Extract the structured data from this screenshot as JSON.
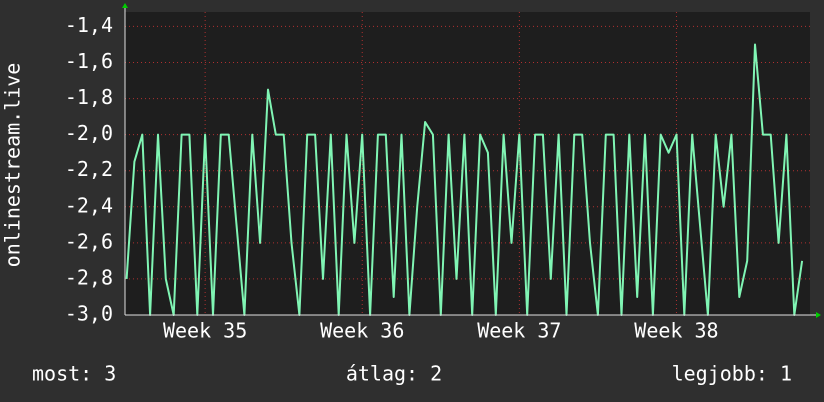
{
  "chart_data": {
    "type": "line",
    "y_label": "onlinestream.live",
    "footer": [
      "most: 3",
      "átlag: 2",
      "legjobb: 1"
    ],
    "x": [
      35.0,
      35.05,
      35.1,
      35.15,
      35.2,
      35.25,
      35.3,
      35.35,
      35.4,
      35.45,
      35.5,
      35.55,
      35.6,
      35.65,
      35.7,
      35.75,
      35.8,
      35.85,
      35.9,
      35.95,
      36.0,
      36.05,
      36.1,
      36.15,
      36.2,
      36.25,
      36.3,
      36.35,
      36.4,
      36.45,
      36.5,
      36.55,
      36.6,
      36.65,
      36.7,
      36.75,
      36.8,
      36.85,
      36.9,
      36.95,
      37.0,
      37.05,
      37.1,
      37.15,
      37.2,
      37.25,
      37.3,
      37.35,
      37.4,
      37.45,
      37.5,
      37.55,
      37.6,
      37.65,
      37.7,
      37.75,
      37.8,
      37.85,
      37.9,
      37.95,
      38.0,
      38.05,
      38.1,
      38.15,
      38.2,
      38.25,
      38.3,
      38.35,
      38.4,
      38.45,
      38.5,
      38.55,
      38.6,
      38.65,
      38.7,
      38.75,
      38.8,
      38.85,
      38.9,
      38.95,
      39.0,
      39.05,
      39.1,
      39.15,
      39.2,
      39.25,
      39.3
    ],
    "series": [
      {
        "color": "#80f5b4",
        "values": [
          -2.8,
          -2.15,
          -2.0,
          -3.0,
          -2.0,
          -2.8,
          -3.0,
          -2.0,
          -2.0,
          -3.0,
          -2.0,
          -3.0,
          -2.0,
          -2.0,
          -2.5,
          -3.0,
          -2.0,
          -2.6,
          -1.75,
          -2.0,
          -2.0,
          -2.6,
          -3.0,
          -2.0,
          -2.0,
          -2.8,
          -2.0,
          -3.0,
          -2.0,
          -2.6,
          -2.0,
          -3.0,
          -2.0,
          -2.0,
          -2.9,
          -2.0,
          -3.0,
          -2.4,
          -1.93,
          -2.0,
          -3.0,
          -2.0,
          -2.8,
          -2.0,
          -3.0,
          -2.0,
          -2.1,
          -3.0,
          -2.0,
          -2.6,
          -2.0,
          -3.0,
          -2.0,
          -2.0,
          -2.8,
          -2.0,
          -3.0,
          -2.0,
          -2.0,
          -2.6,
          -3.0,
          -2.0,
          -2.0,
          -3.0,
          -2.0,
          -2.9,
          -2.0,
          -3.0,
          -2.0,
          -2.1,
          -2.0,
          -3.0,
          -2.0,
          -2.5,
          -3.0,
          -2.0,
          -2.4,
          -2.0,
          -2.9,
          -2.7,
          -1.5,
          -2.0,
          -2.0,
          -2.6,
          -2.0,
          -3.0,
          -2.7
        ]
      }
    ],
    "xlim": [
      34.99,
      39.35
    ],
    "xticks": [
      {
        "value": 35.5,
        "label": "Week 35"
      },
      {
        "value": 36.5,
        "label": "Week 36"
      },
      {
        "value": 37.5,
        "label": "Week 37"
      },
      {
        "value": 38.5,
        "label": "Week 38"
      }
    ],
    "ylim": [
      -3.0,
      -1.32
    ],
    "yticks": [
      {
        "value": -3.0,
        "label": "-3,0"
      },
      {
        "value": -2.8,
        "label": "-2,8"
      },
      {
        "value": -2.6,
        "label": "-2,6"
      },
      {
        "value": -2.4,
        "label": "-2,4"
      },
      {
        "value": -2.2,
        "label": "-2,2"
      },
      {
        "value": -2.0,
        "label": "-2,0"
      },
      {
        "value": -1.8,
        "label": "-1,8"
      },
      {
        "value": -1.6,
        "label": "-1,6"
      },
      {
        "value": -1.4,
        "label": "-1,4"
      }
    ],
    "grid": true
  }
}
